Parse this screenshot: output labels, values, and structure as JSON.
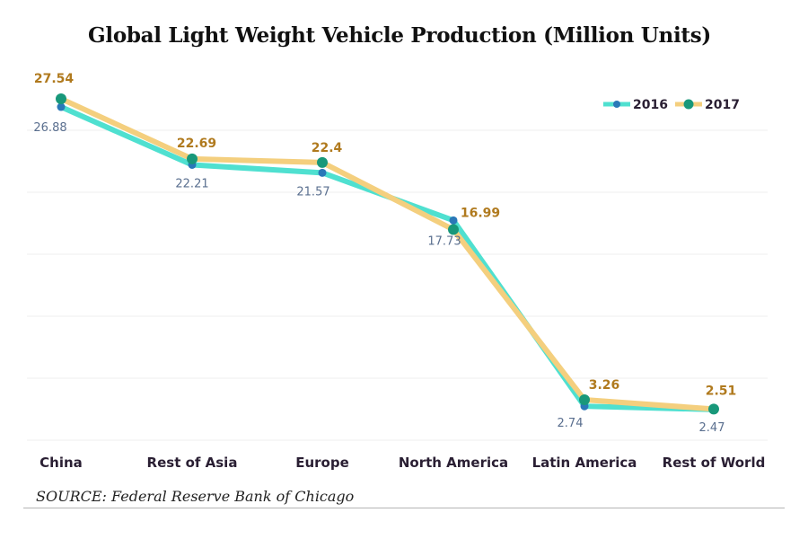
{
  "chart_data": {
    "type": "line",
    "title": "Global Light Weight Vehicle Production (Million Units)",
    "xlabel": "",
    "ylabel": "",
    "categories": [
      "China",
      "Rest of Asia",
      "Europe",
      "North America",
      "Latin America",
      "Rest of World"
    ],
    "series": [
      {
        "name": "2016",
        "values": [
          26.88,
          22.21,
          21.57,
          17.73,
          2.74,
          2.47
        ],
        "line_color": "#4fe0d0",
        "marker_color": "#2a78b8",
        "label_color": "#5a6f8f"
      },
      {
        "name": "2017",
        "values": [
          27.54,
          22.69,
          22.4,
          16.99,
          3.26,
          2.51
        ],
        "line_color": "#f4cf7e",
        "marker_color": "#18987a",
        "label_color": "#b07a1e"
      }
    ],
    "ylim": [
      0,
      25
    ],
    "gridlines": [
      0,
      5,
      10,
      15,
      20,
      25
    ],
    "grid": true,
    "legend": "top-right",
    "source": "SOURCE: Federal Reserve Bank of Chicago"
  }
}
